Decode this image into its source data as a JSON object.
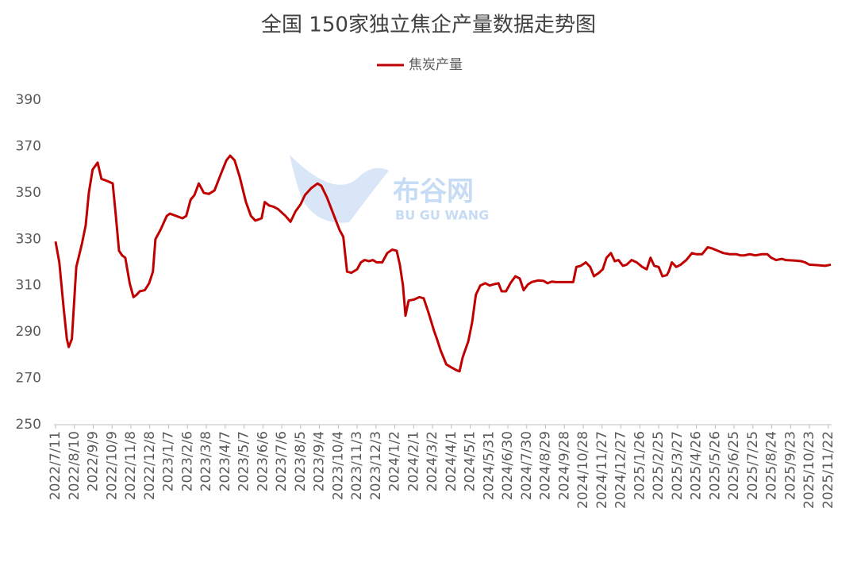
{
  "chart_data": {
    "type": "line",
    "title": "全国 150家独立焦企产量数据走势图",
    "watermark": {
      "name": "布谷网",
      "latin": "BU GU WANG"
    },
    "x": [
      "2022/7/11",
      "2022/7/17",
      "2022/7/24",
      "2022/7/29",
      "2022/8/1",
      "2022/8/6",
      "2022/8/13",
      "2022/8/22",
      "2022/8/28",
      "2022/9/2",
      "2022/9/8",
      "2022/9/16",
      "2022/9/22",
      "2022/10/2",
      "2022/10/10",
      "2022/10/15",
      "2022/10/20",
      "2022/10/25",
      "2022/10/30",
      "2022/11/6",
      "2022/11/12",
      "2022/11/17",
      "2022/11/22",
      "2022/11/30",
      "2022/12/7",
      "2022/12/13",
      "2022/12/17",
      "2022/12/25",
      "2023/1/4",
      "2023/1/9",
      "2023/1/19",
      "2023/1/29",
      "2023/2/4",
      "2023/2/11",
      "2023/2/17",
      "2023/2/24",
      "2023/3/4",
      "2023/3/12",
      "2023/3/21",
      "2023/3/31",
      "2023/4/9",
      "2023/4/15",
      "2023/4/22",
      "2023/4/30",
      "2023/5/10",
      "2023/5/18",
      "2023/5/25",
      "2023/6/4",
      "2023/6/9",
      "2023/6/16",
      "2023/6/23",
      "2023/6/30",
      "2023/7/12",
      "2023/7/20",
      "2023/7/28",
      "2023/8/5",
      "2023/8/12",
      "2023/8/22",
      "2023/9/1",
      "2023/9/7",
      "2023/9/16",
      "2023/9/26",
      "2023/10/6",
      "2023/10/12",
      "2023/10/18",
      "2023/10/25",
      "2023/11/3",
      "2023/11/9",
      "2023/11/15",
      "2023/11/22",
      "2023/11/28",
      "2023/12/4",
      "2023/12/13",
      "2023/12/21",
      "2023/12/29",
      "2024/1/5",
      "2024/1/10",
      "2024/1/15",
      "2024/1/19",
      "2024/1/24",
      "2024/2/2",
      "2024/2/10",
      "2024/2/17",
      "2024/2/25",
      "2024/3/5",
      "2024/3/9",
      "2024/3/15",
      "2024/3/24",
      "2024/3/30",
      "2024/4/9",
      "2024/4/14",
      "2024/4/19",
      "2024/4/28",
      "2024/5/4",
      "2024/5/10",
      "2024/5/17",
      "2024/5/25",
      "2024/6/1",
      "2024/6/7",
      "2024/6/15",
      "2024/6/20",
      "2024/6/27",
      "2024/7/4",
      "2024/7/12",
      "2024/7/19",
      "2024/7/25",
      "2024/8/1",
      "2024/8/7",
      "2024/8/17",
      "2024/8/26",
      "2024/9/1",
      "2024/9/8",
      "2024/9/14",
      "2024/9/27",
      "2024/10/12",
      "2024/10/17",
      "2024/10/24",
      "2024/11/1",
      "2024/11/8",
      "2024/11/14",
      "2024/11/22",
      "2024/11/28",
      "2024/12/4",
      "2024/12/11",
      "2024/12/17",
      "2024/12/23",
      "2024/12/30",
      "2025/1/5",
      "2025/1/13",
      "2025/1/21",
      "2025/1/30",
      "2025/2/6",
      "2025/2/12",
      "2025/2/18",
      "2025/2/25",
      "2025/3/3",
      "2025/3/10",
      "2025/3/13",
      "2025/3/18",
      "2025/3/25",
      "2025/4/1",
      "2025/4/10",
      "2025/4/19",
      "2025/4/26",
      "2025/5/5",
      "2025/5/14",
      "2025/5/21",
      "2025/5/30",
      "2025/6/8",
      "2025/6/18",
      "2025/6/29",
      "2025/7/5",
      "2025/7/11",
      "2025/7/20",
      "2025/7/29",
      "2025/8/8",
      "2025/8/17",
      "2025/8/23",
      "2025/8/31",
      "2025/9/9",
      "2025/9/15",
      "2025/9/27",
      "2025/10/10",
      "2025/10/16",
      "2025/10/23",
      "2025/11/4",
      "2025/11/17",
      "2025/11/26"
    ],
    "series": [
      {
        "name": "焦炭产量",
        "color": "#c00000",
        "values": [
          329,
          320,
          300,
          287,
          283.5,
          287,
          318,
          328,
          336,
          350,
          360,
          363,
          356,
          355,
          354,
          340,
          325,
          323,
          322,
          311,
          305,
          306,
          307.5,
          308,
          311,
          316,
          330,
          334,
          340,
          341,
          340,
          339,
          340,
          347,
          349,
          354,
          350,
          349.5,
          351,
          358,
          364,
          366,
          364,
          357,
          346,
          340,
          338,
          339,
          346,
          344.5,
          344,
          343,
          340,
          337.5,
          342,
          345,
          349,
          352,
          354,
          353,
          348,
          341,
          334,
          331,
          316,
          315.5,
          317,
          320,
          321,
          320.5,
          321,
          320,
          320,
          324,
          325.5,
          325,
          319,
          310,
          297,
          303.5,
          304,
          305,
          304.5,
          298,
          290,
          287,
          282,
          276,
          275,
          273.5,
          273,
          279,
          286,
          294,
          306,
          310,
          311,
          310,
          310.5,
          311,
          307.5,
          307.5,
          311,
          314,
          313,
          308,
          310.5,
          311.5,
          312.2,
          312,
          311,
          311.7,
          311.5,
          311.5,
          311.5,
          318,
          318.5,
          320,
          318,
          314,
          315.5,
          317,
          322,
          324,
          320.5,
          321,
          318.5,
          319,
          321,
          320,
          318,
          317,
          322,
          318.5,
          318,
          314,
          314.5,
          316,
          320,
          318,
          319,
          321,
          324,
          323.5,
          323.5,
          326.5,
          326,
          325,
          324,
          323.5,
          323.5,
          323,
          323,
          323.5,
          323,
          323.5,
          323.5,
          322,
          321,
          321.5,
          321,
          320.8,
          320.5,
          320,
          319,
          318.8,
          318.5,
          319
        ]
      }
    ],
    "xlim": [
      "2022/7/11",
      "2025/11/26"
    ],
    "xticks": [
      "2022/7/11",
      "2022/8/10",
      "2022/9/9",
      "2022/10/9",
      "2022/11/8",
      "2022/12/8",
      "2023/1/7",
      "2023/2/6",
      "2023/3/8",
      "2023/4/7",
      "2023/5/7",
      "2023/6/6",
      "2023/7/6",
      "2023/8/5",
      "2023/9/4",
      "2023/10/4",
      "2023/11/3",
      "2023/12/3",
      "2024/1/2",
      "2024/2/1",
      "2024/3/2",
      "2024/4/1",
      "2024/5/1",
      "2024/5/31",
      "2024/6/30",
      "2024/7/30",
      "2024/8/29",
      "2024/9/28",
      "2024/10/28",
      "2024/11/27",
      "2024/12/27",
      "2025/1/26",
      "2025/2/25",
      "2025/3/27",
      "2025/4/26",
      "2025/5/26",
      "2025/6/25",
      "2025/7/25",
      "2025/8/24",
      "2025/9/23",
      "2025/10/23",
      "2025/11/22"
    ],
    "ylim": [
      250,
      390
    ],
    "yticks": [
      250,
      270,
      290,
      310,
      330,
      350,
      370,
      390
    ],
    "grid": false,
    "legend": "top"
  }
}
